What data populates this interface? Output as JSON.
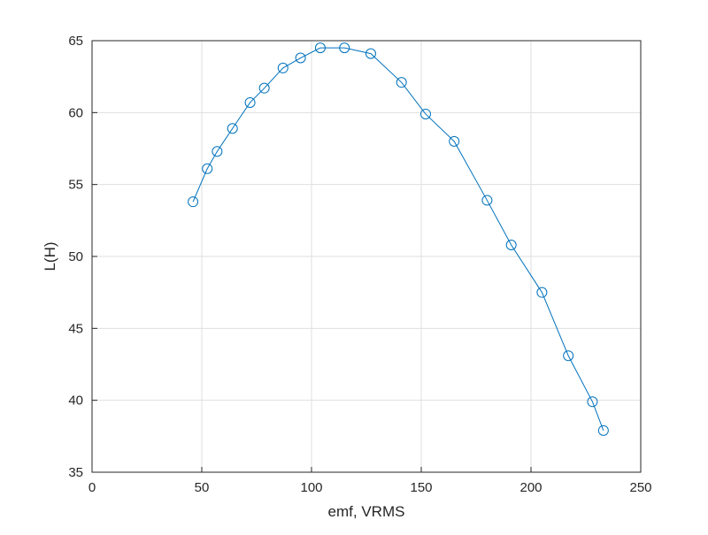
{
  "chart_data": {
    "type": "line",
    "xlabel": "emf, VRMS",
    "ylabel": "L(H)",
    "xlim": [
      0,
      250
    ],
    "ylim": [
      35,
      65
    ],
    "xticks": [
      0,
      50,
      100,
      150,
      200,
      250
    ],
    "yticks": [
      35,
      40,
      45,
      50,
      55,
      60,
      65
    ],
    "grid": true,
    "marker": "circle-open",
    "series": [
      {
        "color": "#0072BD",
        "x": [
          46,
          52.5,
          57,
          64,
          72,
          78.5,
          87,
          95,
          104,
          115,
          127,
          141,
          152,
          165,
          180,
          191,
          205,
          217,
          228,
          233
        ],
        "y": [
          53.8,
          56.1,
          57.3,
          58.9,
          60.7,
          61.7,
          63.1,
          63.8,
          64.5,
          64.5,
          64.1,
          62.1,
          59.9,
          58.0,
          53.9,
          50.8,
          47.5,
          43.1,
          39.9,
          37.9
        ]
      }
    ]
  }
}
